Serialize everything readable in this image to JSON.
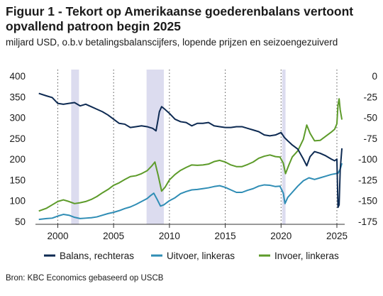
{
  "header": {
    "title": "Figuur 1 - Tekort op Amerikaanse goederenbalans vertoont opvallend patroon begin 2025",
    "subtitle": "miljard USD, o.b.v betalingsbalanscijfers, lopende prijzen en seizoengezuiverd"
  },
  "source": "Bron: KBC Economics gebaseerd op USCB",
  "chart_data": {
    "type": "line",
    "title": "Figuur 1 - Tekort op Amerikaanse goederenbalans vertoont opvallend patroon begin 2025",
    "subtitle": "miljard USD, o.b.v betalingsbalanscijfers, lopende prijzen en seizoengezuiverd",
    "xlim": [
      1998,
      2025.7
    ],
    "x_ticks": [
      2000,
      2005,
      2010,
      2015,
      2020,
      2025
    ],
    "x_tick_labels": [
      "2000",
      "2005",
      "2010",
      "2015",
      "2020",
      "2025"
    ],
    "y_left": {
      "lim": [
        50,
        400
      ],
      "ticks": [
        50,
        100,
        150,
        200,
        250,
        300,
        350,
        400
      ],
      "tick_labels": [
        "50",
        "100",
        "150",
        "200",
        "250",
        "300",
        "350",
        "400"
      ]
    },
    "y_right": {
      "lim": [
        -175,
        0
      ],
      "ticks": [
        0,
        -25,
        -50,
        -75,
        -100,
        -125,
        -150,
        -175
      ],
      "tick_labels": [
        "0",
        "-25",
        "-50",
        "-75",
        "-100",
        "-125",
        "-150",
        "-175"
      ]
    },
    "grid": "vertical dotted at x ticks",
    "recessions": [
      [
        2001.2,
        2001.9
      ],
      [
        2007.95,
        2009.5
      ],
      [
        2020.1,
        2020.4
      ]
    ],
    "legend_position": "bottom",
    "series": [
      {
        "name": "Balans, rechteras",
        "axis": "right",
        "color": "#0d2a52",
        "points": [
          [
            1998.3,
            -21
          ],
          [
            1999.0,
            -24
          ],
          [
            1999.5,
            -26
          ],
          [
            2000.0,
            -33
          ],
          [
            2000.5,
            -34
          ],
          [
            2001.0,
            -33
          ],
          [
            2001.5,
            -32
          ],
          [
            2002.0,
            -36
          ],
          [
            2002.5,
            -34
          ],
          [
            2003.0,
            -37
          ],
          [
            2003.5,
            -40
          ],
          [
            2004.0,
            -43
          ],
          [
            2004.5,
            -47
          ],
          [
            2005.0,
            -52
          ],
          [
            2005.5,
            -57
          ],
          [
            2006.0,
            -58
          ],
          [
            2006.5,
            -62
          ],
          [
            2007.0,
            -61
          ],
          [
            2007.5,
            -60
          ],
          [
            2008.0,
            -61
          ],
          [
            2008.5,
            -63
          ],
          [
            2008.8,
            -66
          ],
          [
            2009.0,
            -51
          ],
          [
            2009.1,
            -43
          ],
          [
            2009.3,
            -37
          ],
          [
            2009.5,
            -39
          ],
          [
            2010.0,
            -45
          ],
          [
            2010.5,
            -52
          ],
          [
            2011.0,
            -55
          ],
          [
            2011.5,
            -56
          ],
          [
            2012.0,
            -60
          ],
          [
            2012.5,
            -57
          ],
          [
            2013.0,
            -57
          ],
          [
            2013.5,
            -56
          ],
          [
            2014.0,
            -60
          ],
          [
            2014.5,
            -61
          ],
          [
            2015.0,
            -62
          ],
          [
            2015.5,
            -62
          ],
          [
            2016.0,
            -61
          ],
          [
            2016.5,
            -61
          ],
          [
            2017.0,
            -63
          ],
          [
            2017.5,
            -65
          ],
          [
            2018.0,
            -67
          ],
          [
            2018.5,
            -71
          ],
          [
            2019.0,
            -72
          ],
          [
            2019.5,
            -71
          ],
          [
            2020.0,
            -68
          ],
          [
            2020.3,
            -74
          ],
          [
            2020.6,
            -78
          ],
          [
            2021.0,
            -83
          ],
          [
            2021.5,
            -88
          ],
          [
            2022.0,
            -100
          ],
          [
            2022.3,
            -108
          ],
          [
            2022.6,
            -97
          ],
          [
            2023.0,
            -91
          ],
          [
            2023.5,
            -93
          ],
          [
            2024.0,
            -96
          ],
          [
            2024.5,
            -100
          ],
          [
            2024.8,
            -102
          ],
          [
            2025.0,
            -100
          ],
          [
            2025.1,
            -158
          ],
          [
            2025.2,
            -155
          ],
          [
            2025.3,
            -112
          ],
          [
            2025.45,
            -87
          ]
        ]
      },
      {
        "name": "Uitvoer, linkeras",
        "axis": "left",
        "color": "#2f8db5",
        "points": [
          [
            1998.3,
            55
          ],
          [
            1999.0,
            57
          ],
          [
            1999.5,
            58
          ],
          [
            2000.0,
            63
          ],
          [
            2000.5,
            67
          ],
          [
            2001.0,
            65
          ],
          [
            2001.5,
            60
          ],
          [
            2002.0,
            57
          ],
          [
            2002.5,
            58
          ],
          [
            2003.0,
            59
          ],
          [
            2003.5,
            61
          ],
          [
            2004.0,
            65
          ],
          [
            2004.5,
            69
          ],
          [
            2005.0,
            72
          ],
          [
            2005.5,
            76
          ],
          [
            2006.0,
            81
          ],
          [
            2006.5,
            85
          ],
          [
            2007.0,
            91
          ],
          [
            2007.5,
            98
          ],
          [
            2008.0,
            105
          ],
          [
            2008.3,
            112
          ],
          [
            2008.6,
            118
          ],
          [
            2008.9,
            103
          ],
          [
            2009.2,
            87
          ],
          [
            2009.5,
            90
          ],
          [
            2010.0,
            100
          ],
          [
            2010.5,
            107
          ],
          [
            2011.0,
            117
          ],
          [
            2011.5,
            122
          ],
          [
            2012.0,
            126
          ],
          [
            2012.5,
            127
          ],
          [
            2013.0,
            129
          ],
          [
            2013.5,
            131
          ],
          [
            2014.0,
            134
          ],
          [
            2014.5,
            136
          ],
          [
            2015.0,
            132
          ],
          [
            2015.5,
            126
          ],
          [
            2016.0,
            120
          ],
          [
            2016.5,
            120
          ],
          [
            2017.0,
            125
          ],
          [
            2017.5,
            129
          ],
          [
            2018.0,
            135
          ],
          [
            2018.5,
            138
          ],
          [
            2019.0,
            137
          ],
          [
            2019.5,
            134
          ],
          [
            2019.9,
            135
          ],
          [
            2020.2,
            118
          ],
          [
            2020.35,
            93
          ],
          [
            2020.6,
            108
          ],
          [
            2021.0,
            120
          ],
          [
            2021.5,
            135
          ],
          [
            2022.0,
            148
          ],
          [
            2022.5,
            155
          ],
          [
            2023.0,
            151
          ],
          [
            2023.5,
            155
          ],
          [
            2024.0,
            159
          ],
          [
            2024.5,
            163
          ],
          [
            2024.9,
            165
          ],
          [
            2025.1,
            166
          ],
          [
            2025.3,
            176
          ],
          [
            2025.45,
            190
          ]
        ]
      },
      {
        "name": "Invoer, linkeras",
        "axis": "left",
        "color": "#5d9b2a",
        "points": [
          [
            1998.3,
            75
          ],
          [
            1999.0,
            82
          ],
          [
            1999.5,
            90
          ],
          [
            2000.0,
            98
          ],
          [
            2000.5,
            102
          ],
          [
            2001.0,
            98
          ],
          [
            2001.5,
            93
          ],
          [
            2002.0,
            95
          ],
          [
            2002.5,
            98
          ],
          [
            2003.0,
            103
          ],
          [
            2003.5,
            110
          ],
          [
            2004.0,
            119
          ],
          [
            2004.5,
            127
          ],
          [
            2005.0,
            137
          ],
          [
            2005.5,
            143
          ],
          [
            2006.0,
            151
          ],
          [
            2006.5,
            158
          ],
          [
            2007.0,
            160
          ],
          [
            2007.5,
            165
          ],
          [
            2008.0,
            172
          ],
          [
            2008.4,
            183
          ],
          [
            2008.7,
            193
          ],
          [
            2009.0,
            160
          ],
          [
            2009.3,
            123
          ],
          [
            2009.6,
            132
          ],
          [
            2010.0,
            150
          ],
          [
            2010.5,
            163
          ],
          [
            2011.0,
            173
          ],
          [
            2011.5,
            180
          ],
          [
            2012.0,
            186
          ],
          [
            2012.5,
            185
          ],
          [
            2013.0,
            186
          ],
          [
            2013.5,
            188
          ],
          [
            2014.0,
            194
          ],
          [
            2014.5,
            197
          ],
          [
            2015.0,
            193
          ],
          [
            2015.5,
            186
          ],
          [
            2016.0,
            182
          ],
          [
            2016.5,
            182
          ],
          [
            2017.0,
            187
          ],
          [
            2017.5,
            193
          ],
          [
            2018.0,
            202
          ],
          [
            2018.5,
            207
          ],
          [
            2019.0,
            210
          ],
          [
            2019.5,
            206
          ],
          [
            2019.9,
            205
          ],
          [
            2020.2,
            190
          ],
          [
            2020.4,
            165
          ],
          [
            2020.7,
            186
          ],
          [
            2021.0,
            205
          ],
          [
            2021.5,
            220
          ],
          [
            2022.0,
            248
          ],
          [
            2022.3,
            282
          ],
          [
            2022.6,
            262
          ],
          [
            2023.0,
            244
          ],
          [
            2023.5,
            245
          ],
          [
            2024.0,
            255
          ],
          [
            2024.5,
            265
          ],
          [
            2024.8,
            272
          ],
          [
            2025.0,
            285
          ],
          [
            2025.1,
            330
          ],
          [
            2025.2,
            345
          ],
          [
            2025.3,
            318
          ],
          [
            2025.45,
            295
          ]
        ]
      }
    ]
  }
}
